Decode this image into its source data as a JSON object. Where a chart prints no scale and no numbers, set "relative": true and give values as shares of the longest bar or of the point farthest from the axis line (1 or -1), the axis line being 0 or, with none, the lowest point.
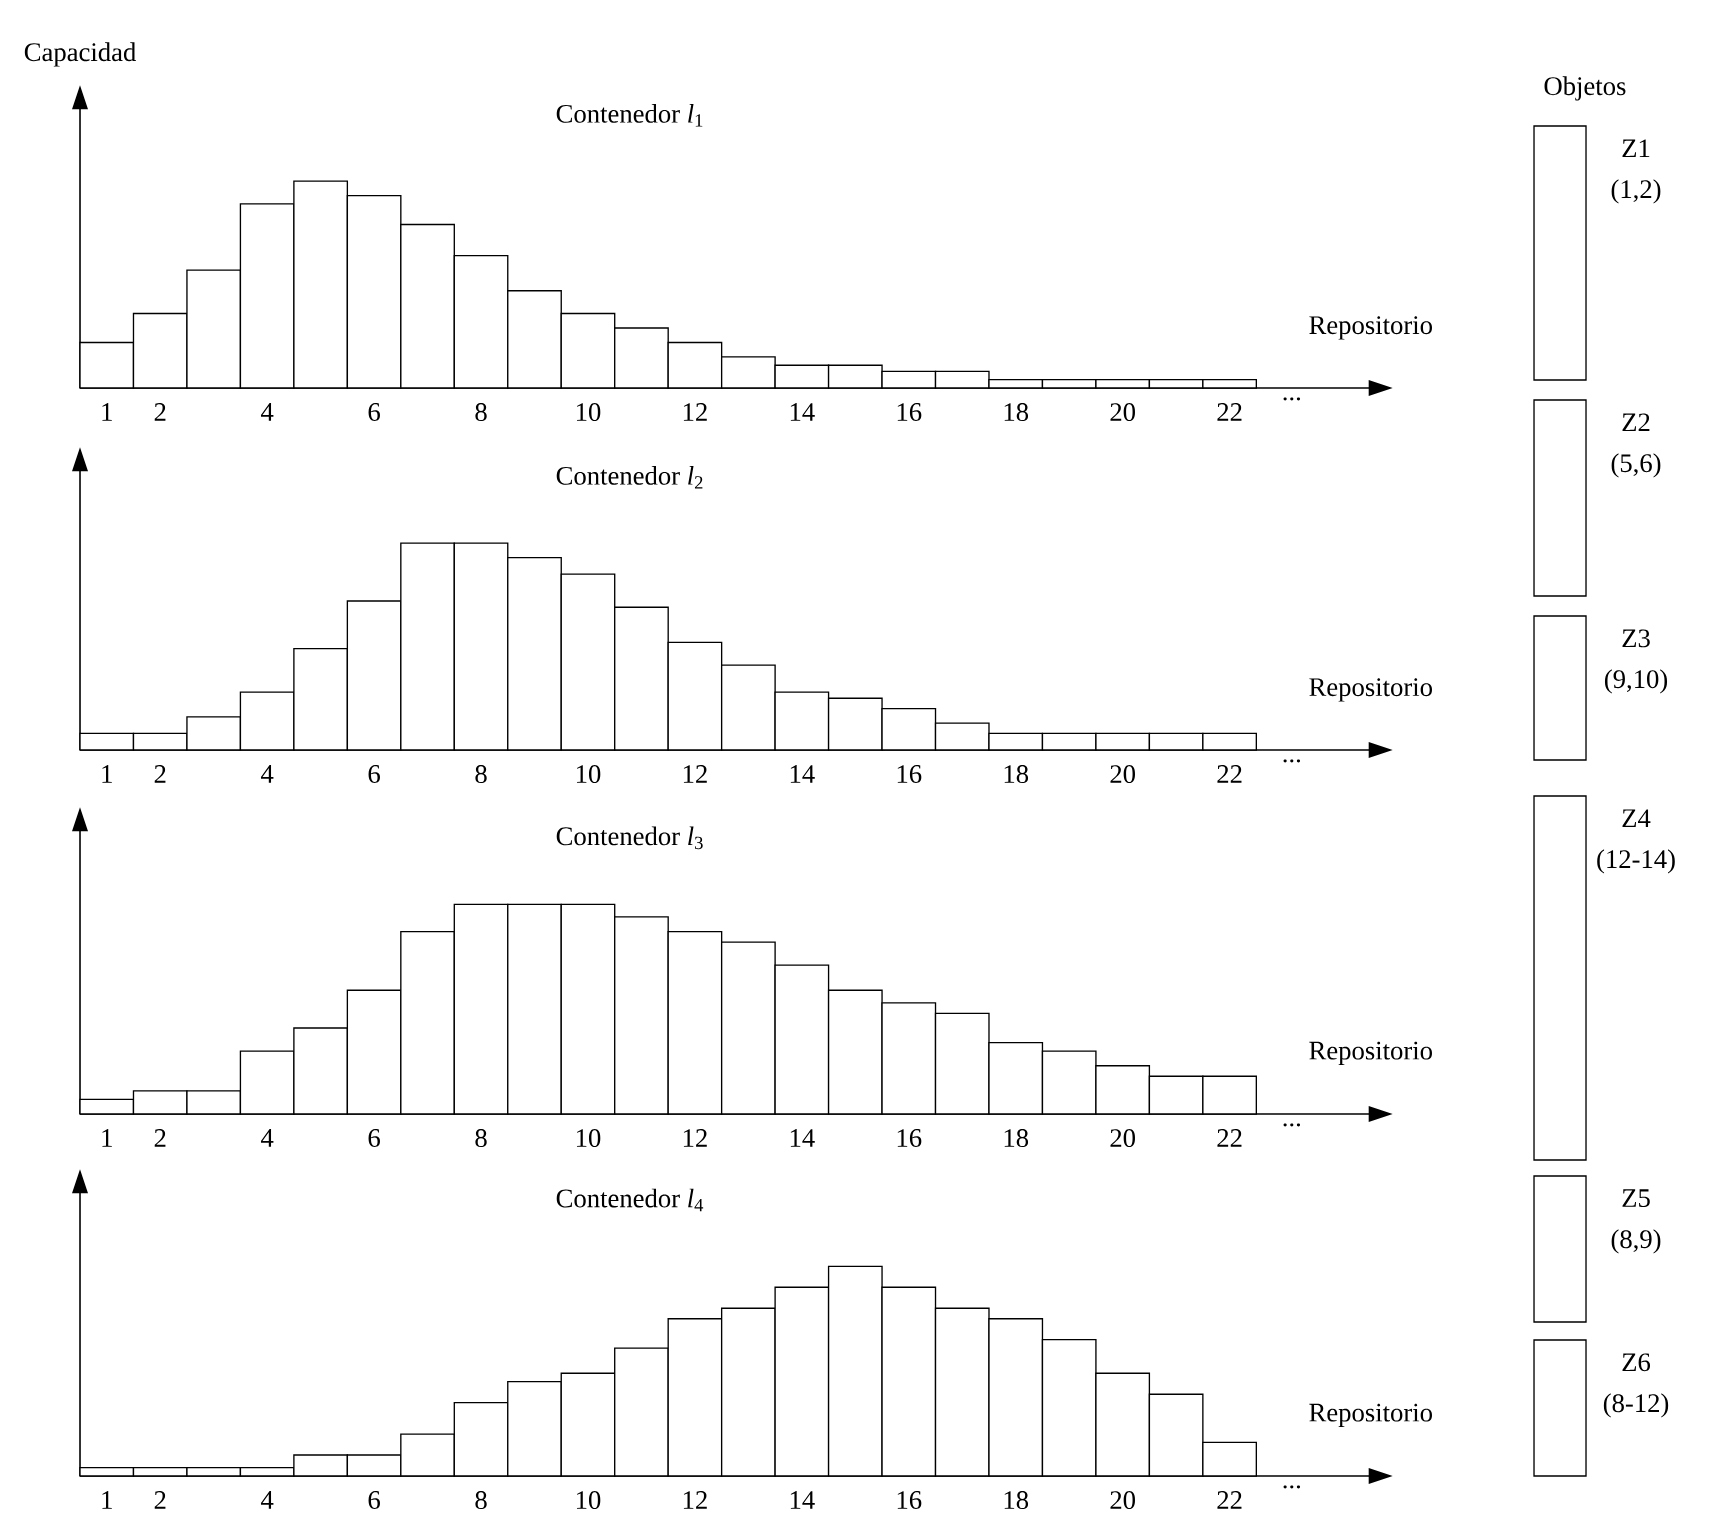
{
  "chart_data": [
    {
      "type": "bar",
      "title": "Contenedor *l*$_{1}$",
      "xlabel": "Repositorio",
      "ylabel": "Capacidad",
      "relative": true,
      "color": "#ffffff",
      "categories": [
        "1",
        "2",
        null,
        "4",
        null,
        "6",
        null,
        "8",
        null,
        "10",
        null,
        "12",
        null,
        "14",
        null,
        "16",
        null,
        "18",
        null,
        "20",
        null,
        "22"
      ],
      "values": [
        0.22,
        0.36,
        0.57,
        0.89,
        1,
        0.93,
        0.79,
        0.64,
        0.47,
        0.36,
        0.29,
        0.22,
        0.15,
        0.11,
        0.11,
        0.08,
        0.08,
        0.04,
        0.04,
        0.04,
        0.04,
        0.04
      ],
      "annotations": [
        "..."
      ]
    },
    {
      "type": "bar",
      "title": "Contenedor *l*$_{2}$",
      "xlabel": "Repositorio",
      "relative": true,
      "color": "#ffffff",
      "categories": [
        "1",
        "2",
        null,
        "4",
        null,
        "6",
        null,
        "8",
        null,
        "10",
        null,
        "12",
        null,
        "14",
        null,
        "16",
        null,
        "18",
        null,
        "20",
        null,
        "22"
      ],
      "values": [
        0.08,
        0.08,
        0.16,
        0.28,
        0.49,
        0.72,
        1,
        1,
        0.93,
        0.85,
        0.69,
        0.52,
        0.41,
        0.28,
        0.25,
        0.2,
        0.13,
        0.08,
        0.08,
        0.08,
        0.08,
        0.08
      ],
      "annotations": [
        "..."
      ]
    },
    {
      "type": "bar",
      "title": "Contenedor *l*$_{3}$",
      "xlabel": "Repositorio",
      "relative": true,
      "color": "#ffffff",
      "categories": [
        "1",
        "2",
        null,
        "4",
        null,
        "6",
        null,
        "8",
        null,
        "10",
        null,
        "12",
        null,
        "14",
        null,
        "16",
        null,
        "18",
        null,
        "20",
        null,
        "22"
      ],
      "values": [
        0.07,
        0.11,
        0.11,
        0.3,
        0.41,
        0.59,
        0.87,
        1,
        1,
        1,
        0.94,
        0.87,
        0.82,
        0.71,
        0.59,
        0.53,
        0.48,
        0.34,
        0.3,
        0.23,
        0.18,
        0.18
      ],
      "annotations": [
        "..."
      ]
    },
    {
      "type": "bar",
      "title": "Contenedor *l*$_{4}$",
      "xlabel": "Repositorio",
      "relative": true,
      "color": "#ffffff",
      "categories": [
        "1",
        "2",
        null,
        "4",
        null,
        "6",
        null,
        "8",
        null,
        "10",
        null,
        "12",
        null,
        "14",
        null,
        "16",
        null,
        "18",
        null,
        "20",
        null,
        "22"
      ],
      "values": [
        0.04,
        0.04,
        0.04,
        0.04,
        0.1,
        0.1,
        0.2,
        0.35,
        0.45,
        0.49,
        0.61,
        0.75,
        0.8,
        0.9,
        1,
        0.9,
        0.8,
        0.75,
        0.65,
        0.49,
        0.39,
        0.16
      ],
      "annotations": [
        "..."
      ]
    },
    {
      "type": "other",
      "title": "Objetos",
      "annotations": [
        "Z1",
        "(1,2)",
        "Z2",
        "(5,6)",
        "Z3",
        "(9,10)",
        "Z4",
        "(12-14)",
        "Z5",
        "(8,9)",
        "Z6",
        "(8-12)"
      ]
    }
  ]
}
